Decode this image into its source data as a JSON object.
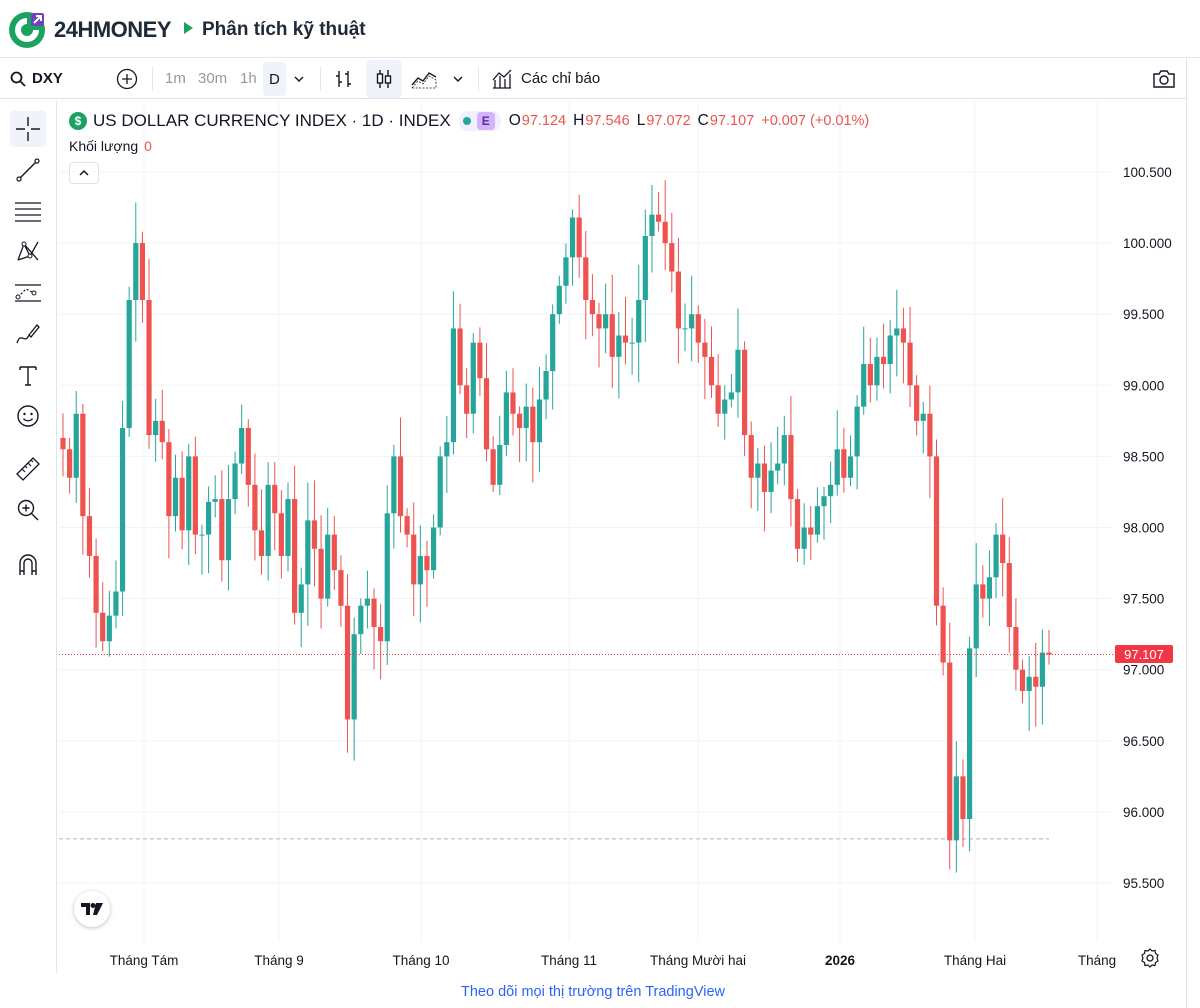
{
  "header": {
    "logo_text": "24HMONEY",
    "page_title": "Phân tích kỹ thuật"
  },
  "toolbar": {
    "symbol": "DXY",
    "intervals": [
      "1m",
      "30m",
      "1h",
      "D"
    ],
    "active_interval": "D",
    "indicators_label": "Các chỉ báo"
  },
  "legend": {
    "title": "US DOLLAR CURRENCY INDEX · 1D · INDEX",
    "exchange_badge": "E",
    "open_key": "O",
    "open": "97.124",
    "high_key": "H",
    "high": "97.546",
    "low_key": "L",
    "low": "97.072",
    "close_key": "C",
    "close": "97.107",
    "change": "+0.007 (+0.01%)",
    "volume_label": "Khối lượng",
    "volume_value": "0"
  },
  "price_tag": "97.107",
  "footer": {
    "link_text": "Theo dõi mọi thị trường trên TradingView"
  },
  "colors": {
    "up": "#26a69a",
    "down": "#ef5350",
    "brand_green": "#1aa260",
    "link": "#2962ff"
  },
  "chart_data": {
    "type": "candlestick",
    "symbol": "DXY",
    "y_axis_labels": [
      "100.500",
      "100.000",
      "99.500",
      "99.000",
      "98.500",
      "98.000",
      "97.500",
      "97.000",
      "96.500",
      "96.000",
      "95.500"
    ],
    "ylim": [
      95.2,
      100.7
    ],
    "x_axis_labels": [
      "Tháng Tám",
      "Tháng 9",
      "Tháng 10",
      "Tháng 11",
      "Tháng Mười hai",
      "2026",
      "Tháng Hai",
      "Tháng"
    ],
    "last_price": 97.107,
    "reference_line": 95.81,
    "closes": [
      98.55,
      98.35,
      98.8,
      98.08,
      97.8,
      97.4,
      97.2,
      97.38,
      97.55,
      98.7,
      99.6,
      100.0,
      99.6,
      98.65,
      98.75,
      98.6,
      98.08,
      98.35,
      97.98,
      98.5,
      97.95,
      97.95,
      98.18,
      98.2,
      97.77,
      98.2,
      98.45,
      98.7,
      98.3,
      97.98,
      97.8,
      98.3,
      98.1,
      97.8,
      98.2,
      97.4,
      97.6,
      98.05,
      97.85,
      97.5,
      97.95,
      97.7,
      97.45,
      96.65,
      97.25,
      97.45,
      97.5,
      97.3,
      97.2,
      98.1,
      98.5,
      98.08,
      97.95,
      97.6,
      97.8,
      97.7,
      98.0,
      98.5,
      98.6,
      99.4,
      99.0,
      98.8,
      99.3,
      99.05,
      98.55,
      98.3,
      98.58,
      98.95,
      98.8,
      98.7,
      98.85,
      98.6,
      98.9,
      99.1,
      99.5,
      99.7,
      99.9,
      100.18,
      99.9,
      99.6,
      99.5,
      99.4,
      99.5,
      99.2,
      99.35,
      99.3,
      99.3,
      99.6,
      100.05,
      100.2,
      100.15,
      100.0,
      99.8,
      99.4,
      99.4,
      99.5,
      99.3,
      99.2,
      99.0,
      98.8,
      98.9,
      98.95,
      99.25,
      98.65,
      98.35,
      98.45,
      98.25,
      98.4,
      98.45,
      98.65,
      98.2,
      97.85,
      98.0,
      97.95,
      98.15,
      98.22,
      98.3,
      98.55,
      98.35,
      98.5,
      98.85,
      99.15,
      99.0,
      99.2,
      99.15,
      99.35,
      99.4,
      99.3,
      99.0,
      98.75,
      98.8,
      98.5,
      97.45,
      97.05,
      95.8,
      96.25,
      95.95,
      97.15,
      97.6,
      97.5,
      97.65,
      97.95,
      97.75,
      97.3,
      97.0,
      96.85,
      96.95,
      96.88,
      97.12,
      97.107
    ]
  }
}
